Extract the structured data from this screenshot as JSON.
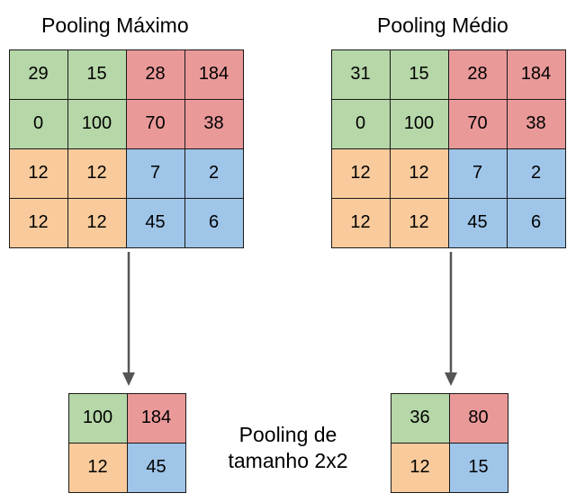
{
  "titles": {
    "max": "Pooling Máximo",
    "avg": "Pooling Médio"
  },
  "colors": {
    "green": "#b6d7a8",
    "red": "#ea9999",
    "orange": "#f9cb9c",
    "blue": "#9fc5e8",
    "arrow": "#555555"
  },
  "max_input": [
    [
      "29",
      "15",
      "28",
      "184"
    ],
    [
      "0",
      "100",
      "70",
      "38"
    ],
    [
      "12",
      "12",
      "7",
      "2"
    ],
    [
      "12",
      "12",
      "45",
      "6"
    ]
  ],
  "avg_input": [
    [
      "31",
      "15",
      "28",
      "184"
    ],
    [
      "0",
      "100",
      "70",
      "38"
    ],
    [
      "12",
      "12",
      "7",
      "2"
    ],
    [
      "12",
      "12",
      "45",
      "6"
    ]
  ],
  "max_output": [
    [
      "100",
      "184"
    ],
    [
      "12",
      "45"
    ]
  ],
  "avg_output": [
    [
      "36",
      "80"
    ],
    [
      "12",
      "15"
    ]
  ],
  "caption": {
    "line1": "Pooling de",
    "line2": "tamanho 2x2"
  }
}
